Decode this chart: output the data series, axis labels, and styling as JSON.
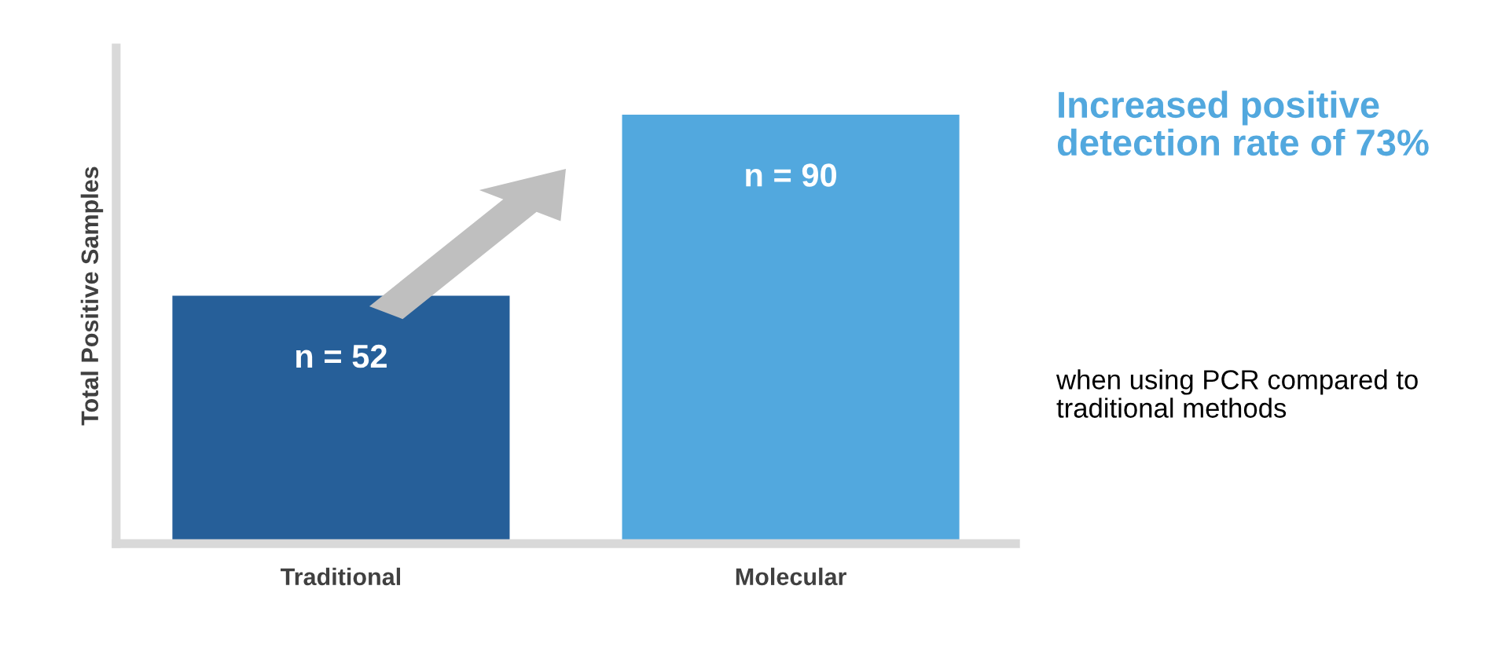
{
  "chart_data": {
    "type": "bar",
    "title": "Increased positive detection rate of 73%",
    "subtitle": "when using PCR compared to traditional methods",
    "ylabel": "Total Positive Samples",
    "categories": [
      "Traditional",
      "Molecular"
    ],
    "values": [
      52,
      90
    ],
    "colors": [
      "#265f99",
      "#52a8de"
    ],
    "value_labels": [
      "n = 52",
      "n = 90"
    ],
    "ylim": [
      0,
      104
    ],
    "tick_labels": "x",
    "grid": false,
    "legend": false
  }
}
